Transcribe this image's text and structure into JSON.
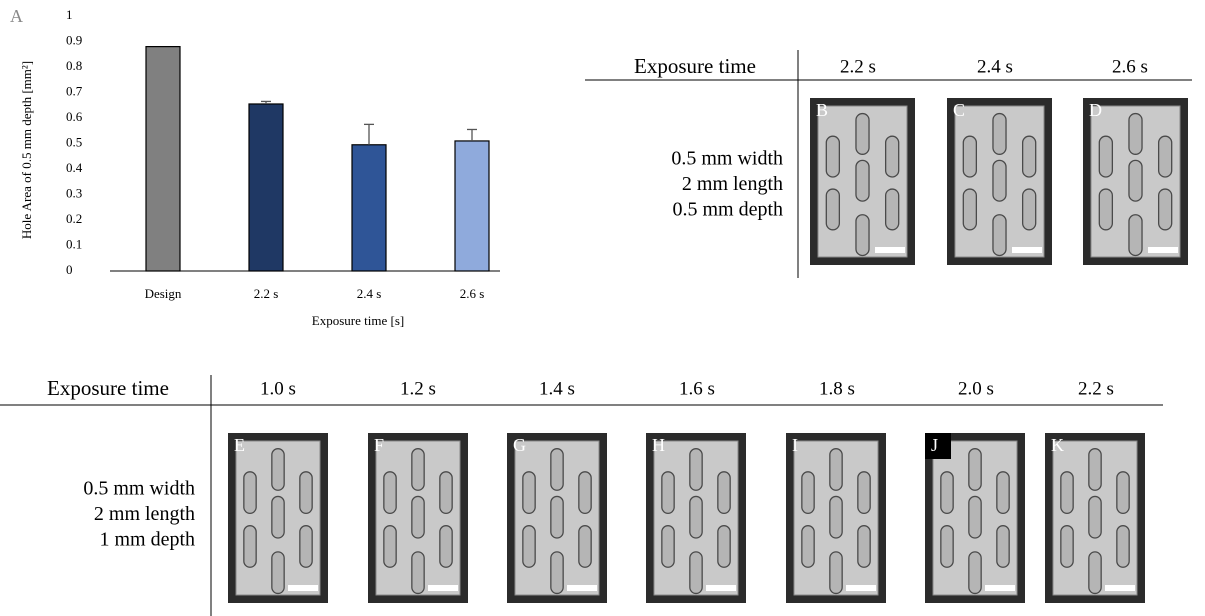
{
  "chart_data": {
    "type": "bar",
    "panel_label": "A",
    "categories": [
      "Design",
      "2.2 s",
      "2.4 s",
      "2.6 s"
    ],
    "values": [
      0.88,
      0.655,
      0.495,
      0.51
    ],
    "errors": [
      null,
      0.01,
      0.08,
      0.045
    ],
    "colors": [
      "#808080",
      "#1f3864",
      "#2f5597",
      "#8faadc"
    ],
    "ylim": [
      0,
      1
    ],
    "yticks": [
      0,
      0.1,
      0.2,
      0.3,
      0.4,
      0.5,
      0.6,
      0.7,
      0.8,
      0.9,
      1
    ],
    "ylabel": "Hole Area of 0.5 mm depth [mm²]",
    "xlabel": "Exposure time [s]"
  },
  "tables": [
    {
      "header": "Exposure time",
      "columns": [
        "2.2 s",
        "2.4 s",
        "2.6 s"
      ],
      "row_label": [
        "0.5 mm width",
        "2 mm length",
        "0.5 mm depth"
      ],
      "panels": [
        "B",
        "C",
        "D"
      ]
    },
    {
      "header": "Exposure time",
      "columns": [
        "1.0 s",
        "1.2 s",
        "1.4 s",
        "1.6 s",
        "1.8 s",
        "2.0 s",
        "2.2 s"
      ],
      "row_label": [
        "0.5 mm width",
        "2 mm length",
        "1 mm depth"
      ],
      "panels": [
        "E",
        "F",
        "G",
        "H",
        "I",
        "J",
        "K"
      ]
    }
  ]
}
